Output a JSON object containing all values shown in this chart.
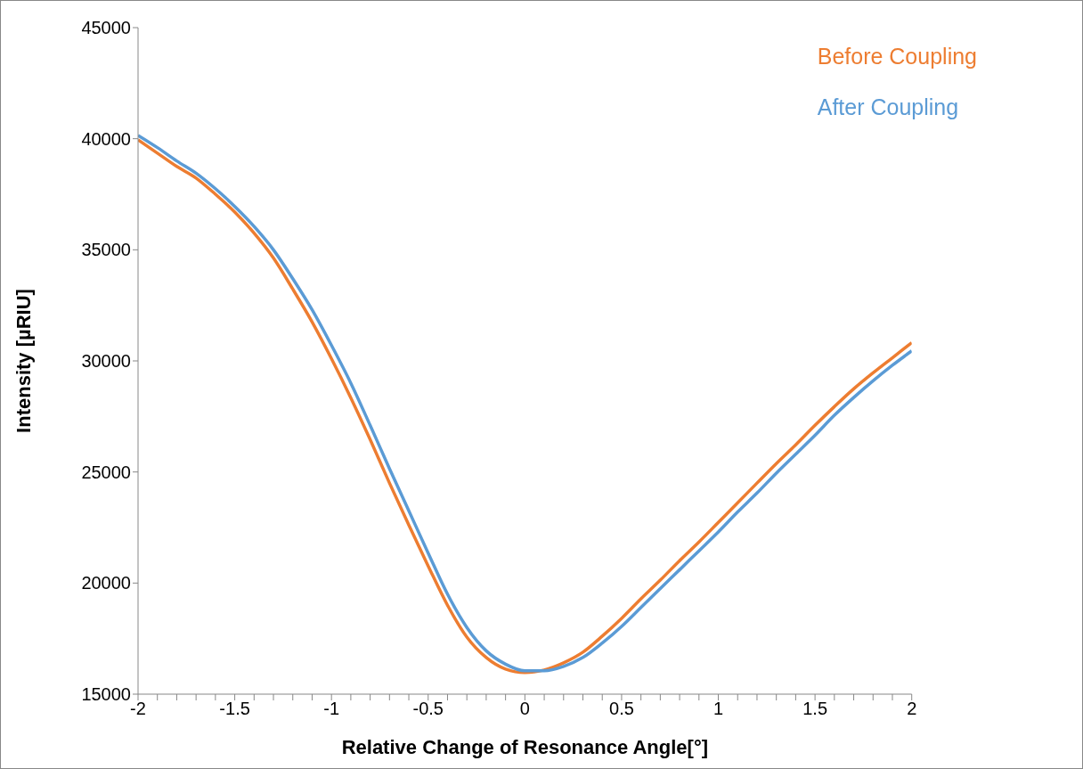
{
  "chart_data": {
    "type": "line",
    "xlabel": "Relative Change of Resonance Angle[°]",
    "ylabel": "Intensity [µRIU]",
    "x": [
      -2,
      -1.9,
      -1.8,
      -1.7,
      -1.6,
      -1.5,
      -1.4,
      -1.3,
      -1.2,
      -1.1,
      -1,
      -0.9,
      -0.8,
      -0.7,
      -0.6,
      -0.5,
      -0.4,
      -0.3,
      -0.2,
      -0.1,
      0,
      0.1,
      0.2,
      0.3,
      0.4,
      0.5,
      0.6,
      0.7,
      0.8,
      0.9,
      1,
      1.1,
      1.2,
      1.3,
      1.4,
      1.5,
      1.6,
      1.7,
      1.8,
      1.9,
      2
    ],
    "series": [
      {
        "name": "Before Coupling",
        "color": "#ed7d31",
        "values": [
          39950,
          39350,
          38750,
          38230,
          37500,
          36700,
          35750,
          34630,
          33230,
          31750,
          30100,
          28340,
          26460,
          24500,
          22610,
          20770,
          19000,
          17570,
          16650,
          16130,
          15970,
          16090,
          16410,
          16890,
          17610,
          18410,
          19290,
          20130,
          21010,
          21850,
          22730,
          23610,
          24500,
          25380,
          26220,
          27100,
          27940,
          28740,
          29460,
          30140,
          30820
        ]
      },
      {
        "name": "After Coupling",
        "color": "#5b9bd5",
        "values": [
          40150,
          39600,
          39000,
          38450,
          37750,
          36950,
          36050,
          35000,
          33700,
          32300,
          30700,
          29000,
          27100,
          25150,
          23250,
          21350,
          19500,
          18000,
          16950,
          16350,
          16050,
          16050,
          16250,
          16650,
          17300,
          18050,
          18900,
          19750,
          20600,
          21450,
          22300,
          23200,
          24050,
          24950,
          25800,
          26650,
          27550,
          28350,
          29100,
          29800,
          30450
        ]
      }
    ],
    "xlim": [
      -2,
      2
    ],
    "xticks": [
      -2,
      {
        "value": -1.9,
        "label": null
      },
      {
        "value": -1.8,
        "label": null
      },
      {
        "value": -1.7,
        "label": null
      },
      {
        "value": -1.6,
        "label": null
      },
      -1.5,
      {
        "value": -1.4,
        "label": null
      },
      {
        "value": -1.3,
        "label": null
      },
      {
        "value": -1.2,
        "label": null
      },
      {
        "value": -1.1,
        "label": null
      },
      -1,
      {
        "value": -0.9,
        "label": null
      },
      {
        "value": -0.8,
        "label": null
      },
      {
        "value": -0.7,
        "label": null
      },
      {
        "value": -0.6,
        "label": null
      },
      -0.5,
      {
        "value": -0.4,
        "label": null
      },
      {
        "value": -0.3,
        "label": null
      },
      {
        "value": -0.2,
        "label": null
      },
      {
        "value": -0.1,
        "label": null
      },
      0,
      {
        "value": 0.1,
        "label": null
      },
      {
        "value": 0.2,
        "label": null
      },
      {
        "value": 0.3,
        "label": null
      },
      {
        "value": 0.4,
        "label": null
      },
      0.5,
      {
        "value": 0.6,
        "label": null
      },
      {
        "value": 0.7,
        "label": null
      },
      {
        "value": 0.8,
        "label": null
      },
      {
        "value": 0.9,
        "label": null
      },
      1,
      {
        "value": 1.1,
        "label": null
      },
      {
        "value": 1.2,
        "label": null
      },
      {
        "value": 1.3,
        "label": null
      },
      {
        "value": 1.4,
        "label": null
      },
      1.5,
      {
        "value": 1.6,
        "label": null
      },
      {
        "value": 1.7,
        "label": null
      },
      {
        "value": 1.8,
        "label": null
      },
      {
        "value": 1.9,
        "label": null
      },
      2
    ],
    "ylim": [
      15000,
      45000
    ],
    "yticks": [
      15000,
      20000,
      25000,
      30000,
      35000,
      40000,
      45000
    ],
    "grid": false,
    "legend": "top right",
    "marker": "none",
    "line_style": "solid"
  }
}
